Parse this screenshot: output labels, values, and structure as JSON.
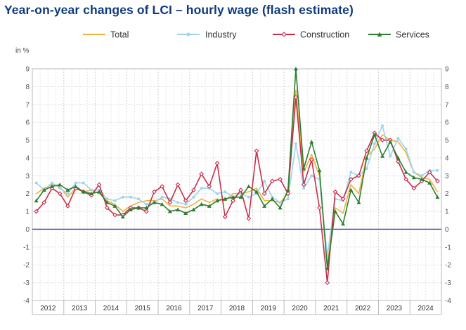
{
  "chart_data": {
    "type": "line",
    "title": "Year-on-year changes of LCI – hourly wage (flash estimate)",
    "yunit": "in %",
    "ylim": [
      -4,
      9
    ],
    "yticks": [
      -4,
      -3,
      -2,
      -1,
      0,
      1,
      2,
      3,
      4,
      5,
      6,
      7,
      8,
      9
    ],
    "grid": true,
    "legend_position": "top",
    "year_labels": [
      "2012",
      "2013",
      "2014",
      "2015",
      "2016",
      "2017",
      "2018",
      "2019",
      "2020",
      "2021",
      "2022",
      "2023",
      "2024"
    ],
    "x": [
      "2012Q1",
      "2012Q2",
      "2012Q3",
      "2012Q4",
      "2013Q1",
      "2013Q2",
      "2013Q3",
      "2013Q4",
      "2014Q1",
      "2014Q2",
      "2014Q3",
      "2014Q4",
      "2015Q1",
      "2015Q2",
      "2015Q3",
      "2015Q4",
      "2016Q1",
      "2016Q2",
      "2016Q3",
      "2016Q4",
      "2017Q1",
      "2017Q2",
      "2017Q3",
      "2017Q4",
      "2018Q1",
      "2018Q2",
      "2018Q3",
      "2018Q4",
      "2019Q1",
      "2019Q2",
      "2019Q3",
      "2019Q4",
      "2020Q1",
      "2020Q2",
      "2020Q3",
      "2020Q4",
      "2021Q1",
      "2021Q2",
      "2021Q3",
      "2021Q4",
      "2022Q1",
      "2022Q2",
      "2022Q3",
      "2022Q4",
      "2023Q1",
      "2023Q2",
      "2023Q3",
      "2023Q4",
      "2024Q1",
      "2024Q2",
      "2024Q3",
      "2024Q4"
    ],
    "series": [
      {
        "name": "Total",
        "color": "#f0b23e",
        "marker": "none",
        "values": [
          2.0,
          2.3,
          2.5,
          2.4,
          1.8,
          2.3,
          2.1,
          2.2,
          2.0,
          1.6,
          1.4,
          1.0,
          1.3,
          1.5,
          1.6,
          1.6,
          1.7,
          1.3,
          1.3,
          1.2,
          1.4,
          1.7,
          1.5,
          1.7,
          1.6,
          2.0,
          2.0,
          2.1,
          2.3,
          1.6,
          1.6,
          1.5,
          2.0,
          7.8,
          3.2,
          4.2,
          3.0,
          -2.0,
          1.2,
          0.9,
          2.5,
          2.0,
          4.1,
          4.5,
          5.3,
          5.0,
          4.9,
          4.3,
          3.2,
          2.9,
          2.8,
          2.1
        ]
      },
      {
        "name": "Industry",
        "color": "#9fd3ec",
        "marker": "dot",
        "values": [
          2.6,
          2.2,
          2.6,
          2.3,
          2.0,
          2.6,
          2.6,
          2.2,
          2.2,
          1.7,
          1.6,
          1.8,
          1.8,
          1.7,
          1.4,
          1.5,
          1.8,
          1.7,
          1.5,
          1.4,
          1.8,
          2.3,
          2.3,
          2.0,
          2.1,
          1.8,
          2.0,
          1.8,
          2.0,
          2.7,
          1.8,
          1.5,
          1.7,
          4.8,
          2.3,
          3.0,
          2.8,
          -1.5,
          1.7,
          1.6,
          3.2,
          3.0,
          3.4,
          4.8,
          5.8,
          4.1,
          5.1,
          4.5,
          3.2,
          3.0,
          3.3,
          3.3
        ]
      },
      {
        "name": "Construction",
        "color": "#c72f4a",
        "marker": "diamond",
        "values": [
          1.0,
          1.5,
          2.3,
          2.0,
          1.3,
          2.3,
          2.1,
          1.9,
          2.5,
          1.2,
          0.8,
          0.8,
          1.2,
          1.2,
          1.0,
          2.1,
          2.4,
          1.5,
          2.5,
          1.6,
          2.2,
          3.1,
          2.4,
          3.7,
          0.7,
          1.6,
          2.2,
          0.6,
          4.4,
          2.0,
          2.7,
          2.8,
          2.0,
          7.4,
          2.5,
          3.9,
          1.2,
          -3.0,
          2.1,
          1.7,
          2.8,
          3.0,
          4.4,
          5.4,
          5.0,
          5.0,
          3.8,
          2.8,
          2.3,
          2.7,
          3.2,
          2.7
        ]
      },
      {
        "name": "Services",
        "color": "#2f7d32",
        "marker": "triangle",
        "values": [
          1.6,
          2.2,
          2.4,
          2.5,
          2.2,
          2.4,
          2.1,
          2.0,
          2.1,
          1.5,
          1.3,
          0.7,
          1.1,
          1.2,
          1.2,
          1.5,
          1.4,
          1.0,
          1.1,
          0.9,
          1.1,
          1.4,
          1.3,
          1.6,
          1.7,
          1.8,
          1.8,
          2.4,
          2.1,
          1.3,
          1.7,
          1.2,
          2.2,
          9.0,
          3.4,
          4.9,
          3.3,
          -2.2,
          1.0,
          0.3,
          2.2,
          1.5,
          4.0,
          5.3,
          4.1,
          4.9,
          4.0,
          3.2,
          2.9,
          2.8,
          2.6,
          1.8
        ]
      }
    ]
  }
}
